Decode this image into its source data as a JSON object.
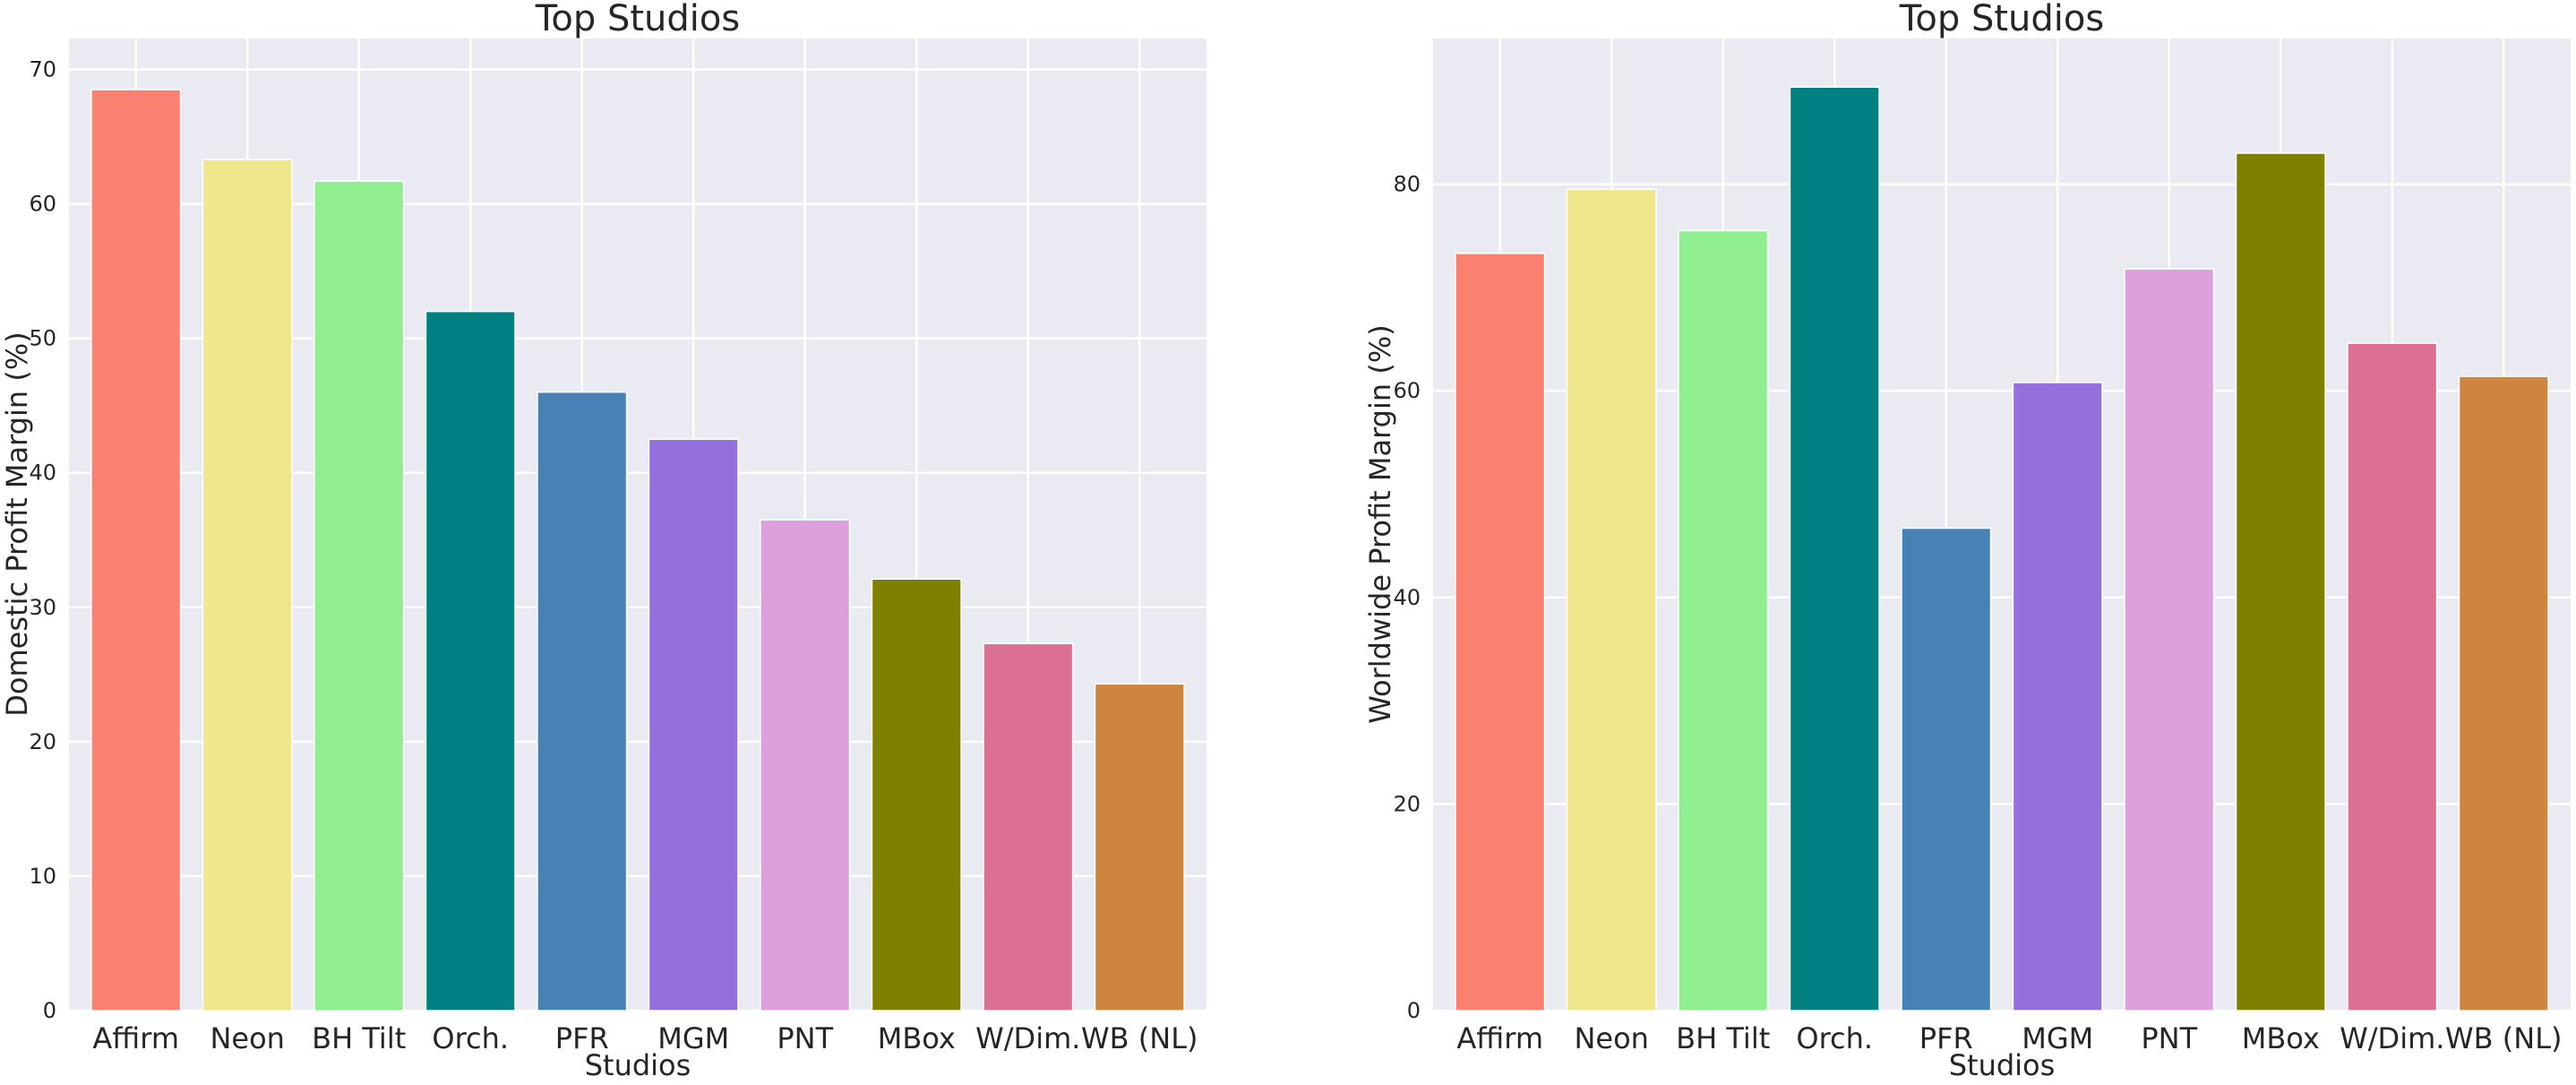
{
  "chart_data": [
    {
      "type": "bar",
      "title": "Top Studios",
      "xlabel": "Studios",
      "ylabel": "Domestic Profit Margin (%)",
      "categories": [
        "Affirm",
        "Neon",
        "BH Tilt",
        "Orch.",
        "PFR",
        "MGM",
        "PNT",
        "MBox",
        "W/Dim.",
        "WB (NL)"
      ],
      "values": [
        68.5,
        63.3,
        61.7,
        52.0,
        46.0,
        42.5,
        36.5,
        32.1,
        27.3,
        24.3
      ],
      "colors": [
        "#fa8072",
        "#f0e68c",
        "#90ee90",
        "#008080",
        "#4682b4",
        "#9370db",
        "#dda0dd",
        "#808000",
        "#db7093",
        "#cd853f"
      ],
      "ylim": [
        0,
        72.3
      ],
      "yticks": [
        0,
        10,
        20,
        30,
        40,
        50,
        60,
        70
      ],
      "grid": true
    },
    {
      "type": "bar",
      "title": "Top Studios",
      "xlabel": "Studios",
      "ylabel": "Worldwide Profit Margin (%)",
      "categories": [
        "Affirm",
        "Neon",
        "BH Tilt",
        "Orch.",
        "PFR",
        "MGM",
        "PNT",
        "MBox",
        "W/Dim.",
        "WB (NL)"
      ],
      "values": [
        73.3,
        79.5,
        75.5,
        89.4,
        46.7,
        60.8,
        71.8,
        83.0,
        64.6,
        61.4
      ],
      "colors": [
        "#fa8072",
        "#f0e68c",
        "#90ee90",
        "#008080",
        "#4682b4",
        "#9370db",
        "#dda0dd",
        "#808000",
        "#db7093",
        "#cd853f"
      ],
      "ylim": [
        0,
        94.1
      ],
      "yticks": [
        0,
        20,
        40,
        60,
        80
      ],
      "grid": true
    }
  ]
}
